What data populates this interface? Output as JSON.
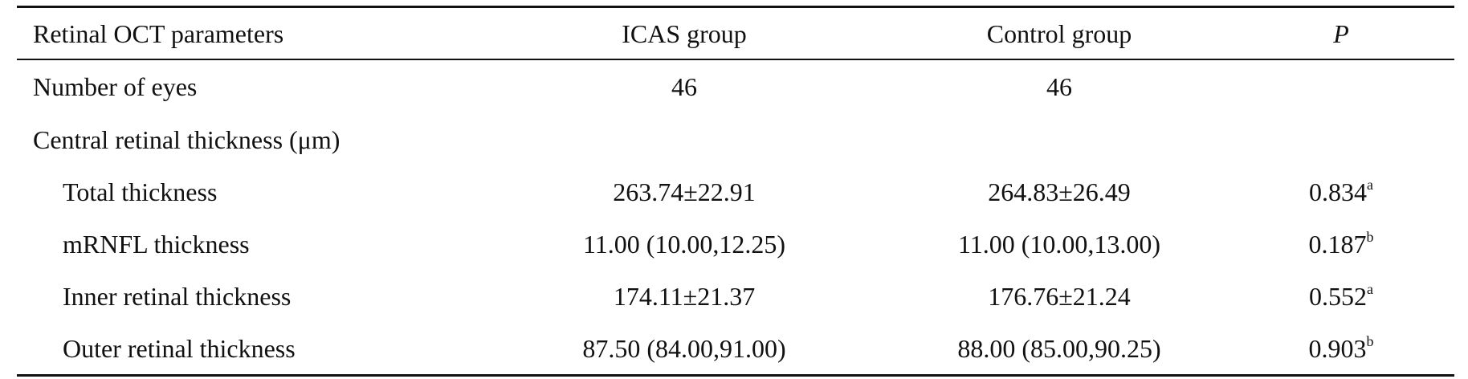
{
  "table": {
    "header": [
      "Retinal OCT parameters",
      "ICAS group",
      "Control group",
      "P"
    ],
    "count_row": {
      "label": "Number of eyes",
      "icas": "46",
      "control": "46"
    },
    "section": {
      "title": "Central retinal thickness (μm)",
      "rows": [
        {
          "label": "Total thickness",
          "icas": "263.74±22.91",
          "control": "264.83±26.49",
          "p": "0.834",
          "note": "a"
        },
        {
          "label": "mRNFL thickness",
          "icas": "11.00 (10.00,12.25)",
          "control": "11.00 (10.00,13.00)",
          "p": "0.187",
          "note": "b"
        },
        {
          "label": "Inner retinal thickness",
          "icas": "174.11±21.37",
          "control": "176.76±21.24",
          "p": "0.552",
          "note": "a"
        },
        {
          "label": "Outer retinal thickness",
          "icas": "87.50 (84.00,91.00)",
          "control": "88.00 (85.00,90.25)",
          "p": "0.903",
          "note": "b"
        }
      ]
    }
  }
}
